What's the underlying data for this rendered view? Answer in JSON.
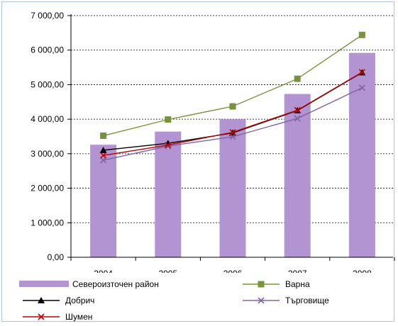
{
  "chart_data": {
    "type": "bar",
    "categories": [
      "2004",
      "2005",
      "2006",
      "2007",
      "2008"
    ],
    "ylim": [
      0,
      7000
    ],
    "yticks": [
      "0,00",
      "1 000,00",
      "2 000,00",
      "3 000,00",
      "4 000,00",
      "5 000,00",
      "6 000,00",
      "7 000,00"
    ],
    "grid": true,
    "legend_position": "bottom",
    "series": [
      {
        "name": "Североизточен район",
        "type": "bar",
        "color": "#b194d1",
        "values": [
          3260,
          3640,
          4000,
          4730,
          5920
        ]
      },
      {
        "name": "Варна",
        "type": "line",
        "marker": "square",
        "color": "#77933c",
        "values": [
          3520,
          3990,
          4370,
          5170,
          6440
        ]
      },
      {
        "name": "Добрич",
        "type": "line",
        "marker": "triangle",
        "color": "#000000",
        "values": [
          3100,
          3300,
          3600,
          4250,
          5350
        ]
      },
      {
        "name": "Търговище",
        "type": "line",
        "marker": "x",
        "color": "#8064a2",
        "values": [
          2810,
          3220,
          3490,
          4020,
          4910
        ]
      },
      {
        "name": "Шумен",
        "type": "line",
        "marker": "x",
        "color": "#c00000",
        "values": [
          2950,
          3250,
          3620,
          4260,
          5360
        ]
      }
    ]
  }
}
